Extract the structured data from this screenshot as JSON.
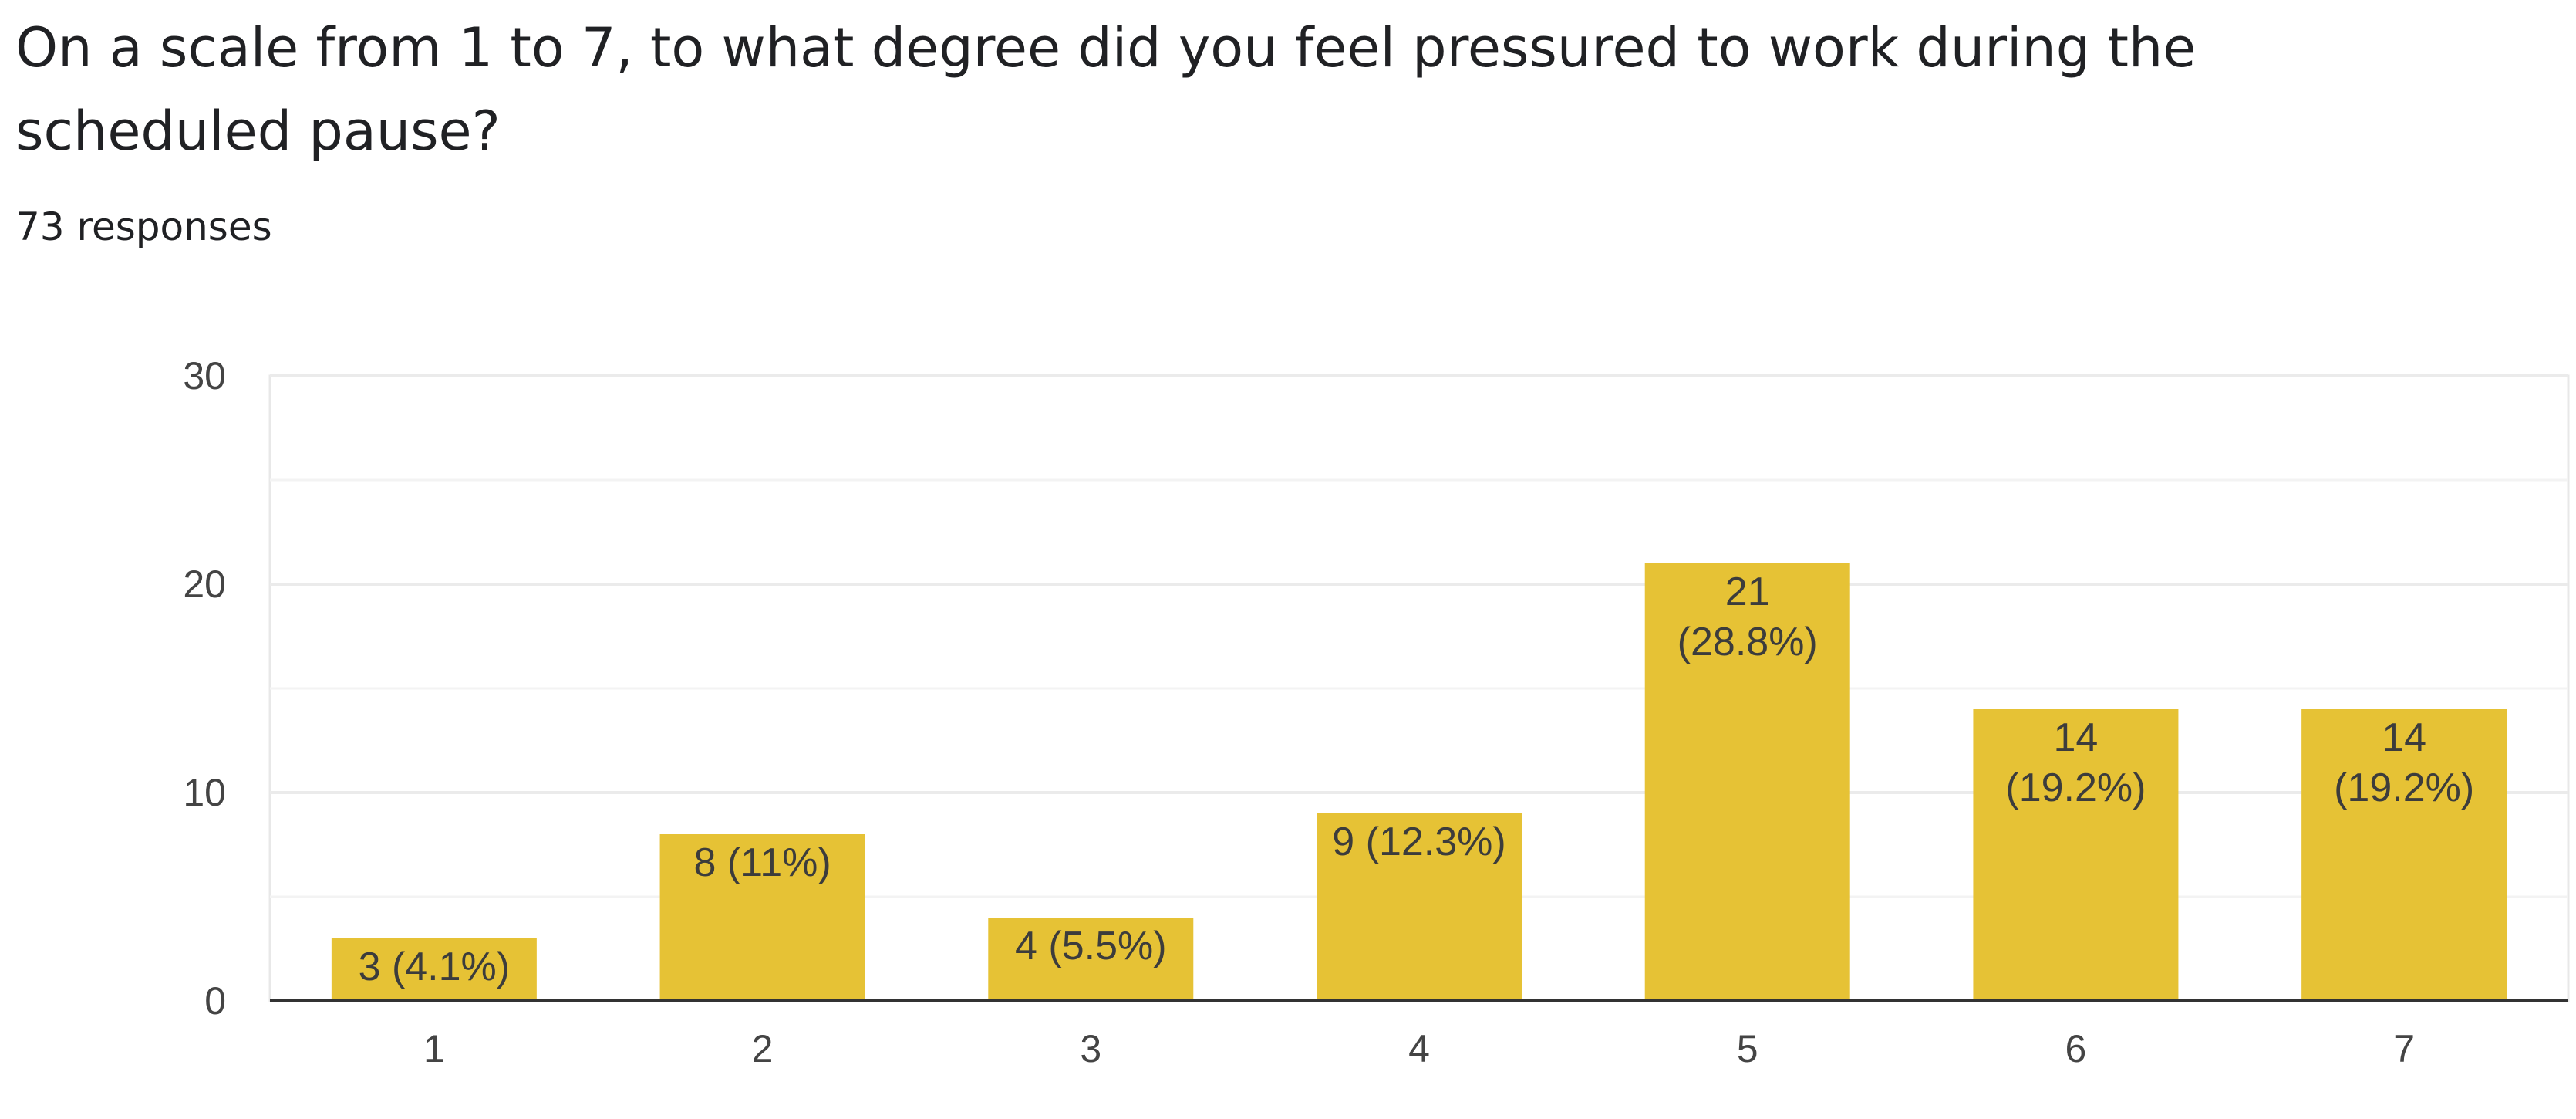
{
  "question": {
    "title": "On a scale from 1 to 7, to what degree did you feel pressured to work during the scheduled pause?",
    "response_count": "73 responses"
  },
  "chart_data": {
    "type": "bar",
    "categories": [
      "1",
      "2",
      "3",
      "4",
      "5",
      "6",
      "7"
    ],
    "values": [
      3,
      8,
      4,
      9,
      21,
      14,
      14
    ],
    "data_labels": [
      "3 (4.1%)",
      "8 (11%)",
      "4 (5.5%)",
      "9 (12.3%)",
      "21 (28.8%)",
      "14 (19.2%)",
      "14 (19.2%)"
    ],
    "ylim": [
      0,
      30
    ],
    "yticks": [
      0,
      10,
      20,
      30
    ],
    "minor_gridlines": true,
    "grid": true,
    "legend": false,
    "bar_color": "#e6c235"
  }
}
